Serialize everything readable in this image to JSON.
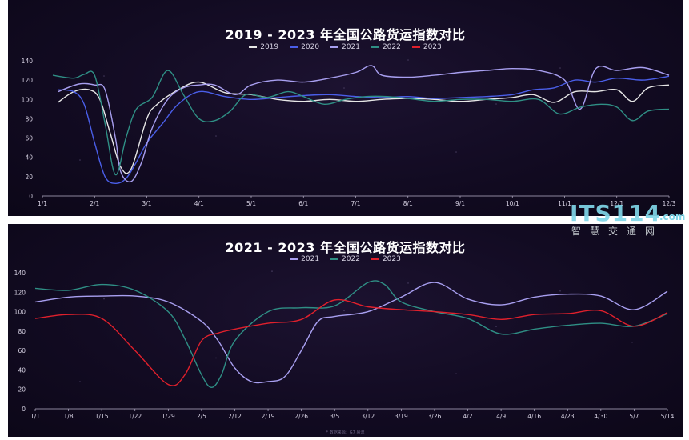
{
  "watermark": {
    "main": "ITS114",
    "suffix": ".com",
    "sub": "智慧交通网"
  },
  "footnote": "* 数据来源：G7 易流",
  "chart_data": [
    {
      "type": "line",
      "title": "2019 - 2023 年全国公路货运指数对比",
      "xlabel": "",
      "ylabel": "",
      "ylim": [
        0,
        140
      ],
      "yticks": [
        0,
        20,
        40,
        60,
        80,
        100,
        120,
        140
      ],
      "x_ticks": [
        "1/1",
        "2/1",
        "3/1",
        "4/1",
        "5/1",
        "6/1",
        "7/1",
        "8/1",
        "9/1",
        "10/1",
        "11/1",
        "12/1",
        "12/3"
      ],
      "x_range": [
        0,
        12
      ],
      "legend_position": "top-center",
      "grid": false,
      "series": [
        {
          "name": "2019",
          "color": "#e6e6e6",
          "x": [
            0.3,
            0.6,
            0.9,
            1.1,
            1.3,
            1.5,
            1.7,
            2.0,
            2.2,
            2.6,
            3.0,
            3.5,
            4.0,
            4.5,
            5.0,
            5.5,
            6.0,
            6.5,
            7.0,
            7.5,
            8.0,
            8.5,
            9.0,
            9.4,
            9.8,
            10.2,
            10.6,
            11.0,
            11.3,
            11.6,
            12.0
          ],
          "y": [
            97,
            108,
            110,
            100,
            65,
            30,
            28,
            80,
            95,
            110,
            118,
            107,
            105,
            100,
            98,
            100,
            98,
            100,
            101,
            100,
            98,
            100,
            102,
            105,
            97,
            108,
            108,
            110,
            98,
            112,
            115
          ]
        },
        {
          "name": "2020",
          "color": "#4a5ee8",
          "x": [
            0.3,
            0.6,
            0.8,
            1.0,
            1.2,
            1.4,
            1.6,
            1.8,
            2.0,
            2.3,
            2.6,
            3.0,
            3.5,
            4.0,
            4.5,
            5.0,
            5.5,
            6.0,
            6.5,
            7.0,
            7.5,
            8.0,
            8.5,
            9.0,
            9.4,
            9.8,
            10.2,
            10.6,
            11.0,
            11.5,
            12.0
          ],
          "y": [
            110,
            108,
            95,
            55,
            20,
            13,
            18,
            35,
            55,
            75,
            95,
            108,
            103,
            100,
            102,
            104,
            105,
            103,
            102,
            103,
            101,
            102,
            103,
            105,
            110,
            112,
            120,
            118,
            122,
            120,
            124
          ]
        },
        {
          "name": "2021",
          "color": "#a89ff0",
          "x": [
            0.3,
            0.7,
            1.0,
            1.2,
            1.4,
            1.5,
            1.7,
            1.9,
            2.1,
            2.4,
            2.7,
            3.0,
            3.3,
            3.7,
            4.0,
            4.5,
            5.0,
            5.5,
            6.0,
            6.3,
            6.5,
            7.0,
            7.5,
            8.0,
            8.5,
            9.0,
            9.5,
            10.0,
            10.3,
            10.6,
            11.0,
            11.5,
            12.0
          ],
          "y": [
            108,
            116,
            115,
            110,
            60,
            25,
            15,
            35,
            70,
            100,
            112,
            115,
            115,
            105,
            115,
            120,
            118,
            122,
            128,
            135,
            125,
            123,
            125,
            128,
            130,
            132,
            130,
            120,
            90,
            132,
            130,
            133,
            125
          ]
        },
        {
          "name": "2022",
          "color": "#2f8f85",
          "x": [
            0.2,
            0.6,
            0.8,
            1.0,
            1.2,
            1.4,
            1.6,
            1.8,
            2.1,
            2.4,
            2.7,
            3.0,
            3.3,
            3.6,
            3.9,
            4.3,
            4.7,
            5.0,
            5.4,
            5.8,
            6.2,
            6.6,
            7.0,
            7.5,
            8.0,
            8.5,
            9.0,
            9.5,
            9.9,
            10.3,
            10.7,
            11.0,
            11.3,
            11.6,
            12.0
          ],
          "y": [
            125,
            122,
            126,
            125,
            75,
            22,
            60,
            90,
            102,
            130,
            105,
            80,
            78,
            88,
            105,
            102,
            108,
            103,
            95,
            100,
            103,
            103,
            101,
            98,
            100,
            100,
            98,
            100,
            85,
            92,
            95,
            92,
            78,
            88,
            90
          ]
        },
        {
          "name": "2023",
          "color": "#e0202c",
          "x": [],
          "y": []
        }
      ]
    },
    {
      "type": "line",
      "title": "2021 - 2023 年全国公路货运指数对比",
      "xlabel": "",
      "ylabel": "",
      "ylim": [
        0,
        140
      ],
      "yticks": [
        0,
        20,
        40,
        60,
        80,
        100,
        120,
        140
      ],
      "x_ticks": [
        "1/1",
        "1/8",
        "1/15",
        "1/22",
        "1/29",
        "2/5",
        "2/12",
        "2/19",
        "2/26",
        "3/5",
        "3/12",
        "3/19",
        "3/26",
        "4/2",
        "4/9",
        "4/16",
        "4/23",
        "4/30",
        "5/7",
        "5/14"
      ],
      "x_range": [
        0,
        19
      ],
      "legend_position": "top-center",
      "grid": false,
      "series": [
        {
          "name": "2021",
          "color": "#a89ff0",
          "x": [
            0,
            1,
            2,
            3,
            4,
            5,
            5.5,
            6,
            6.5,
            7,
            7.5,
            8,
            8.5,
            9,
            10,
            11,
            12,
            13,
            14,
            15,
            16,
            17,
            18,
            19
          ],
          "y": [
            110,
            115,
            116,
            116,
            110,
            90,
            70,
            42,
            28,
            28,
            33,
            60,
            90,
            95,
            100,
            115,
            130,
            113,
            107,
            115,
            118,
            116,
            102,
            121
          ]
        },
        {
          "name": "2022",
          "color": "#2f8f85",
          "x": [
            0,
            1,
            2,
            3,
            4,
            4.5,
            5,
            5.3,
            5.6,
            6,
            7,
            8,
            9,
            10,
            10.5,
            11,
            12,
            13,
            14,
            15,
            16,
            17,
            18,
            19
          ],
          "y": [
            124,
            122,
            128,
            122,
            100,
            72,
            35,
            22,
            35,
            70,
            100,
            104,
            106,
            130,
            128,
            110,
            100,
            93,
            77,
            82,
            86,
            88,
            85,
            98
          ]
        },
        {
          "name": "2023",
          "color": "#e0202c",
          "x": [
            0,
            1,
            2,
            3,
            4,
            4.5,
            5,
            5.5,
            6,
            7,
            8,
            9,
            10,
            11,
            12,
            13,
            14,
            15,
            16,
            17,
            18,
            19
          ],
          "y": [
            93,
            97,
            93,
            60,
            25,
            35,
            70,
            78,
            82,
            88,
            92,
            112,
            105,
            102,
            100,
            97,
            92,
            97,
            98,
            101,
            85,
            99
          ]
        }
      ]
    }
  ]
}
